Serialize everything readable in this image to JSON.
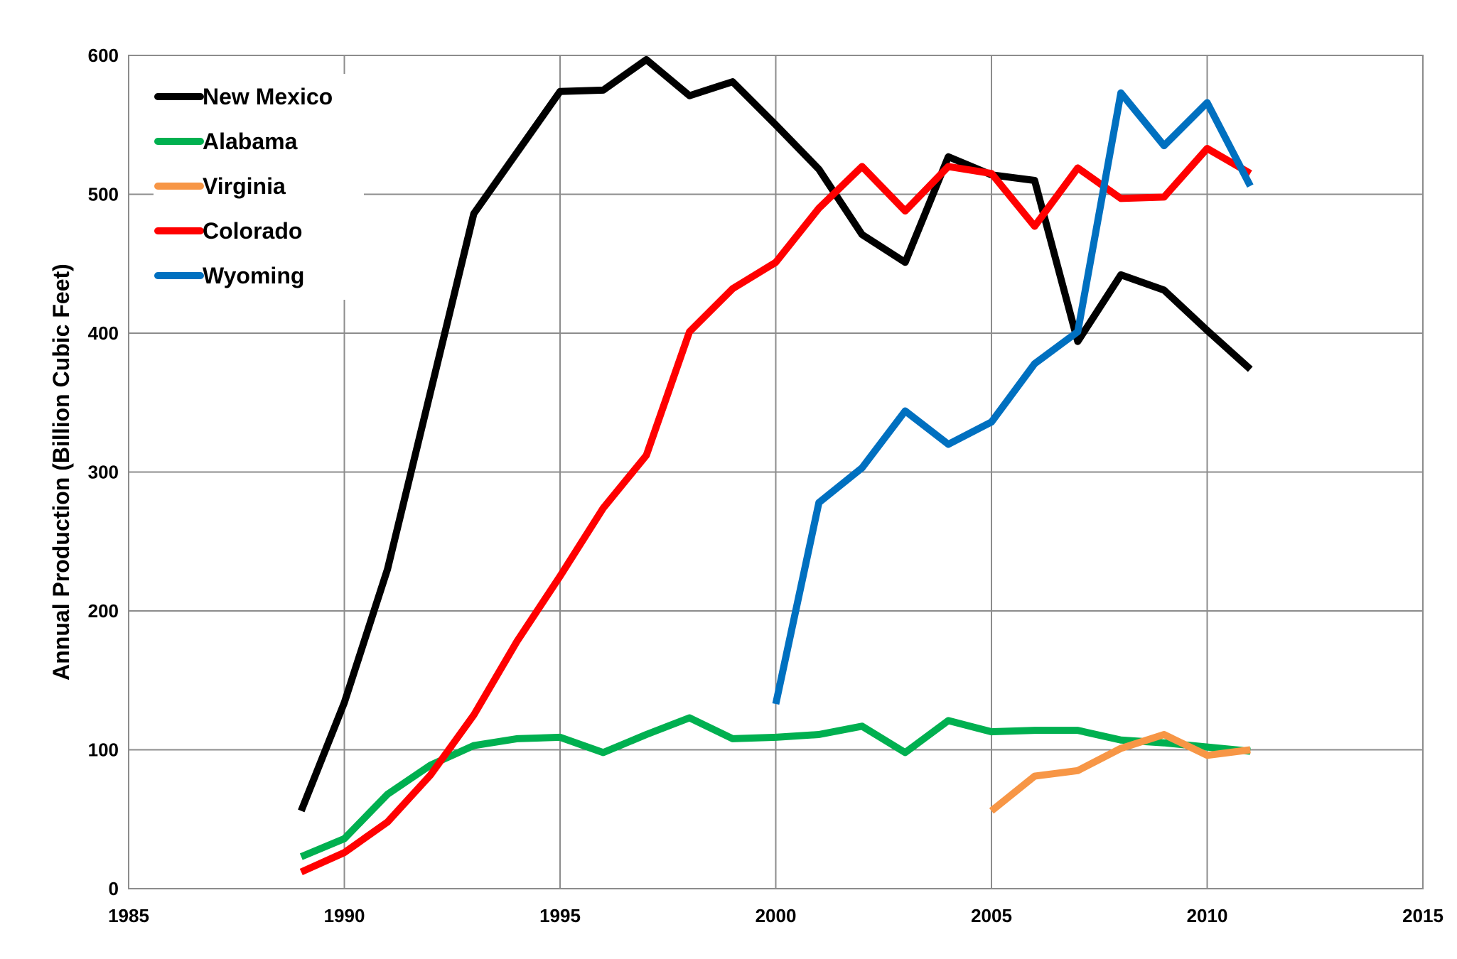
{
  "chart_data": {
    "type": "line",
    "title": "",
    "xlabel": "",
    "ylabel": "Annual Production (Billion Cubic Feet)",
    "xlim": [
      1985,
      2015
    ],
    "ylim": [
      0,
      600
    ],
    "xticks": [
      1985,
      1990,
      1995,
      2000,
      2005,
      2010,
      2015
    ],
    "yticks": [
      0,
      100,
      200,
      300,
      400,
      500,
      600
    ],
    "grid": true,
    "legend_placement": "top-left",
    "series": [
      {
        "name": "New Mexico",
        "color": "#000000",
        "points": [
          [
            1989,
            56
          ],
          [
            1990,
            134
          ],
          [
            1991,
            230
          ],
          [
            1992,
            358
          ],
          [
            1993,
            486
          ],
          [
            1994,
            530
          ],
          [
            1995,
            574
          ],
          [
            1996,
            575
          ],
          [
            1997,
            597
          ],
          [
            1998,
            571
          ],
          [
            1999,
            581
          ],
          [
            2000,
            550
          ],
          [
            2001,
            518
          ],
          [
            2002,
            471
          ],
          [
            2003,
            451
          ],
          [
            2004,
            527
          ],
          [
            2005,
            514
          ],
          [
            2006,
            510
          ],
          [
            2007,
            394
          ],
          [
            2008,
            442
          ],
          [
            2009,
            431
          ],
          [
            2010,
            402
          ],
          [
            2011,
            374
          ]
        ]
      },
      {
        "name": "Alabama",
        "color": "#00b050",
        "points": [
          [
            1989,
            23
          ],
          [
            1990,
            36
          ],
          [
            1991,
            68
          ],
          [
            1992,
            89
          ],
          [
            1993,
            103
          ],
          [
            1994,
            108
          ],
          [
            1995,
            109
          ],
          [
            1996,
            98
          ],
          [
            1997,
            111
          ],
          [
            1998,
            123
          ],
          [
            1999,
            108
          ],
          [
            2000,
            109
          ],
          [
            2001,
            111
          ],
          [
            2002,
            117
          ],
          [
            2003,
            98
          ],
          [
            2004,
            121
          ],
          [
            2005,
            113
          ],
          [
            2006,
            114
          ],
          [
            2007,
            114
          ],
          [
            2008,
            107
          ],
          [
            2009,
            105
          ],
          [
            2010,
            102
          ],
          [
            2011,
            99
          ]
        ]
      },
      {
        "name": "Virginia",
        "color": "#f79646",
        "points": [
          [
            2005,
            56
          ],
          [
            2006,
            81
          ],
          [
            2007,
            85
          ],
          [
            2008,
            101
          ],
          [
            2009,
            111
          ],
          [
            2010,
            96
          ],
          [
            2011,
            100
          ]
        ]
      },
      {
        "name": "Colorado",
        "color": "#ff0000",
        "points": [
          [
            1989,
            12
          ],
          [
            1990,
            26
          ],
          [
            1991,
            48
          ],
          [
            1992,
            82
          ],
          [
            1993,
            125
          ],
          [
            1994,
            178
          ],
          [
            1995,
            225
          ],
          [
            1996,
            274
          ],
          [
            1997,
            312
          ],
          [
            1998,
            401
          ],
          [
            1999,
            432
          ],
          [
            2000,
            451
          ],
          [
            2001,
            490
          ],
          [
            2002,
            520
          ],
          [
            2003,
            488
          ],
          [
            2004,
            520
          ],
          [
            2005,
            515
          ],
          [
            2006,
            477
          ],
          [
            2007,
            519
          ],
          [
            2008,
            497
          ],
          [
            2009,
            498
          ],
          [
            2010,
            533
          ],
          [
            2011,
            515
          ]
        ]
      },
      {
        "name": "Wyoming",
        "color": "#0070c0",
        "points": [
          [
            2000,
            133
          ],
          [
            2001,
            278
          ],
          [
            2002,
            303
          ],
          [
            2003,
            344
          ],
          [
            2004,
            320
          ],
          [
            2005,
            336
          ],
          [
            2006,
            378
          ],
          [
            2007,
            401
          ],
          [
            2008,
            573
          ],
          [
            2009,
            535
          ],
          [
            2010,
            566
          ],
          [
            2011,
            506
          ]
        ]
      }
    ]
  }
}
